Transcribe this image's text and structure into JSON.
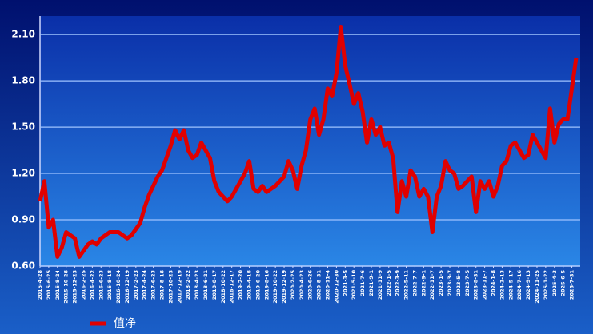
{
  "chart_data": {
    "type": "line",
    "categories": [
      "2015-4-28",
      null,
      "2015-6-25",
      null,
      "2015-8-24",
      null,
      "2015-10-28",
      null,
      "2015-12-23",
      null,
      "2016-2-25",
      null,
      "2016-4-22",
      null,
      "2016-6-23",
      null,
      "2016-8-18",
      null,
      "2016-10-24",
      null,
      "2016-12-19",
      null,
      "2017-2-23",
      null,
      "2017-4-24",
      null,
      "2017-6-23",
      null,
      "2017-8-18",
      null,
      "2017-10-23",
      null,
      "2017-12-19",
      null,
      "2018-2-22",
      null,
      "2018-4-23",
      null,
      "2018-6-21",
      null,
      "2018-8-17",
      null,
      "2018-10-22",
      null,
      "2018-12-17",
      null,
      "2019-2-20",
      null,
      "2019-4-18",
      null,
      "2019-6-20",
      null,
      "2019-8-16",
      null,
      "2019-10-22",
      null,
      "2019-12-19",
      null,
      "2020-2-25",
      null,
      "2020-4-23",
      null,
      "2020-6-26",
      null,
      "2020-8-31",
      null,
      "2020-11-4",
      null,
      "2020-12-30",
      null,
      "2021-3-5",
      null,
      "2021-5-10",
      null,
      "2021-7-6",
      null,
      "2021-9-1",
      null,
      "2021-11-9",
      null,
      "2022-1-5",
      null,
      "2022-3-9",
      null,
      "2022-5-11",
      null,
      "2022-7-7",
      null,
      "2022-9-1",
      null,
      "2022-11-7",
      null,
      "2023-1-5",
      null,
      "2023-3-7",
      null,
      "2023-5-8",
      null,
      "2023-7-5",
      null,
      "2023-8-31",
      null,
      "2023-11-7",
      null,
      "2024-1-8",
      null,
      "2024-3-13",
      null,
      "2024-5-17",
      null,
      "2024-7-16",
      null,
      "2024-9-13",
      null,
      "2024-11-25",
      null,
      "2025-1-22",
      null,
      "2025-4-3",
      null,
      "2025-6-5",
      null,
      "2025-7-31",
      null
    ],
    "series": [
      {
        "name": "值净",
        "color": "#e00000",
        "values": [
          1.02,
          1.15,
          0.85,
          0.9,
          0.66,
          0.72,
          0.82,
          0.8,
          0.78,
          0.66,
          0.7,
          0.74,
          0.76,
          0.74,
          0.78,
          0.8,
          0.82,
          0.82,
          0.82,
          0.8,
          0.78,
          0.8,
          0.84,
          0.88,
          0.98,
          1.06,
          1.12,
          1.18,
          1.22,
          1.3,
          1.38,
          1.48,
          1.42,
          1.48,
          1.35,
          1.3,
          1.32,
          1.4,
          1.35,
          1.3,
          1.15,
          1.08,
          1.05,
          1.02,
          1.05,
          1.1,
          1.15,
          1.2,
          1.28,
          1.1,
          1.08,
          1.12,
          1.08,
          1.1,
          1.12,
          1.15,
          1.18,
          1.28,
          1.22,
          1.1,
          1.25,
          1.35,
          1.55,
          1.62,
          1.45,
          1.55,
          1.75,
          1.7,
          1.85,
          2.15,
          1.9,
          1.78,
          1.65,
          1.72,
          1.6,
          1.4,
          1.55,
          1.45,
          1.5,
          1.38,
          1.4,
          1.3,
          0.95,
          1.15,
          1.05,
          1.22,
          1.18,
          1.05,
          1.1,
          1.05,
          0.82,
          1.05,
          1.12,
          1.28,
          1.22,
          1.2,
          1.1,
          1.12,
          1.15,
          1.18,
          0.95,
          1.15,
          1.1,
          1.15,
          1.05,
          1.12,
          1.25,
          1.28,
          1.38,
          1.4,
          1.35,
          1.3,
          1.32,
          1.45,
          1.4,
          1.35,
          1.3,
          1.62,
          1.4,
          1.52,
          1.55,
          1.55,
          1.75,
          1.95
        ]
      }
    ],
    "ylim": [
      0.6,
      2.22
    ],
    "yticks": [
      {
        "value": 0.6,
        "label": "0.60"
      },
      {
        "value": 0.9,
        "label": "0.90"
      },
      {
        "value": 1.2,
        "label": "1.20"
      },
      {
        "value": 1.5,
        "label": "1.50"
      },
      {
        "value": 1.8,
        "label": "1.80"
      },
      {
        "value": 2.1,
        "label": "2.10"
      }
    ],
    "grid": true
  }
}
